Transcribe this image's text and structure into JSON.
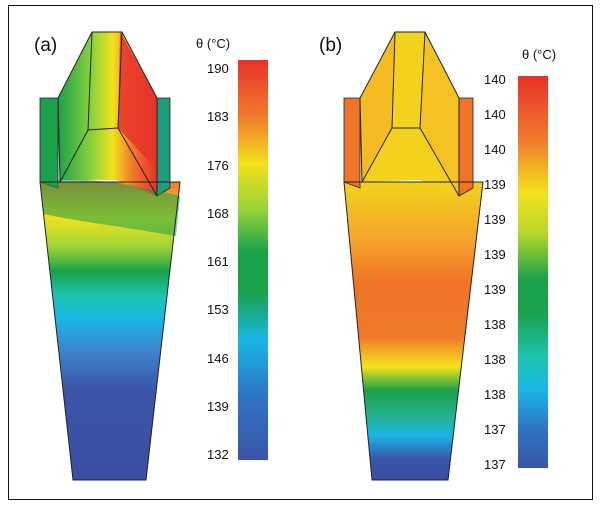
{
  "panel_a": {
    "label": "(a)",
    "colorbar": {
      "unit": "θ (°C)",
      "ticks": [
        "190",
        "183",
        "176",
        "168",
        "161",
        "153",
        "146",
        "139",
        "132"
      ]
    }
  },
  "panel_b": {
    "label": "(b)",
    "colorbar": {
      "unit": "θ (°C)",
      "ticks": [
        "140",
        "140",
        "140",
        "139",
        "139",
        "139",
        "139",
        "138",
        "138",
        "138",
        "137",
        "137"
      ]
    }
  },
  "colors": {
    "red": "#e8322a",
    "orange": "#f07a2a",
    "yellow": "#f2e21c",
    "green": "#1aa14a",
    "cyan": "#19b6e6",
    "blue": "#3a55a8"
  }
}
